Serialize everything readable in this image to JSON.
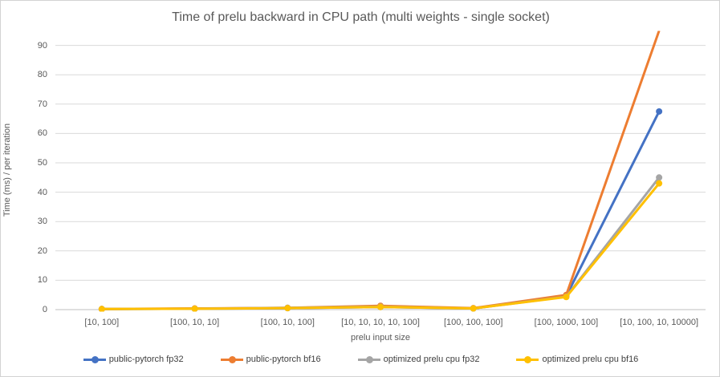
{
  "chart_data": {
    "type": "line",
    "title": "Time of prelu backward in CPU path (multi weights - single socket)",
    "xlabel": "prelu input size",
    "ylabel": "Time (ms) / per iteration",
    "categories": [
      "[10, 100]",
      "[100, 10, 10]",
      "[100, 10, 100]",
      "[10, 10, 10, 10, 100]",
      "[100, 100, 100]",
      "[100, 1000, 100]",
      "[10, 100, 10, 10000]"
    ],
    "series": [
      {
        "name": "public-pytorch fp32",
        "color": "#4472C4",
        "values": [
          0.2,
          0.3,
          0.5,
          0.9,
          0.4,
          4.6,
          67.5
        ]
      },
      {
        "name": "public-pytorch bf16",
        "color": "#ED7D31",
        "values": [
          0.2,
          0.4,
          0.6,
          1.3,
          0.5,
          5.0,
          95.0
        ]
      },
      {
        "name": "optimized prelu cpu fp32",
        "color": "#A5A5A5",
        "values": [
          0.2,
          0.3,
          0.6,
          1.0,
          0.4,
          4.4,
          45.0
        ]
      },
      {
        "name": "optimized prelu cpu bf16",
        "color": "#FFC000",
        "values": [
          0.2,
          0.3,
          0.5,
          0.9,
          0.4,
          4.3,
          43.0
        ]
      }
    ],
    "y_ticks": [
      0,
      10,
      20,
      30,
      40,
      50,
      60,
      70,
      80,
      90
    ],
    "ylim": [
      0,
      94.8
    ],
    "grid": true,
    "legend_position": "bottom",
    "notes": "public-pytorch bf16 line is clipped at the top of the plot area at the last category"
  },
  "style": {
    "gridline_color": "#D9D9D9",
    "zero_line_color": "#BFBFBF",
    "text_color": "#595959",
    "legend_text_color": "#404040"
  }
}
